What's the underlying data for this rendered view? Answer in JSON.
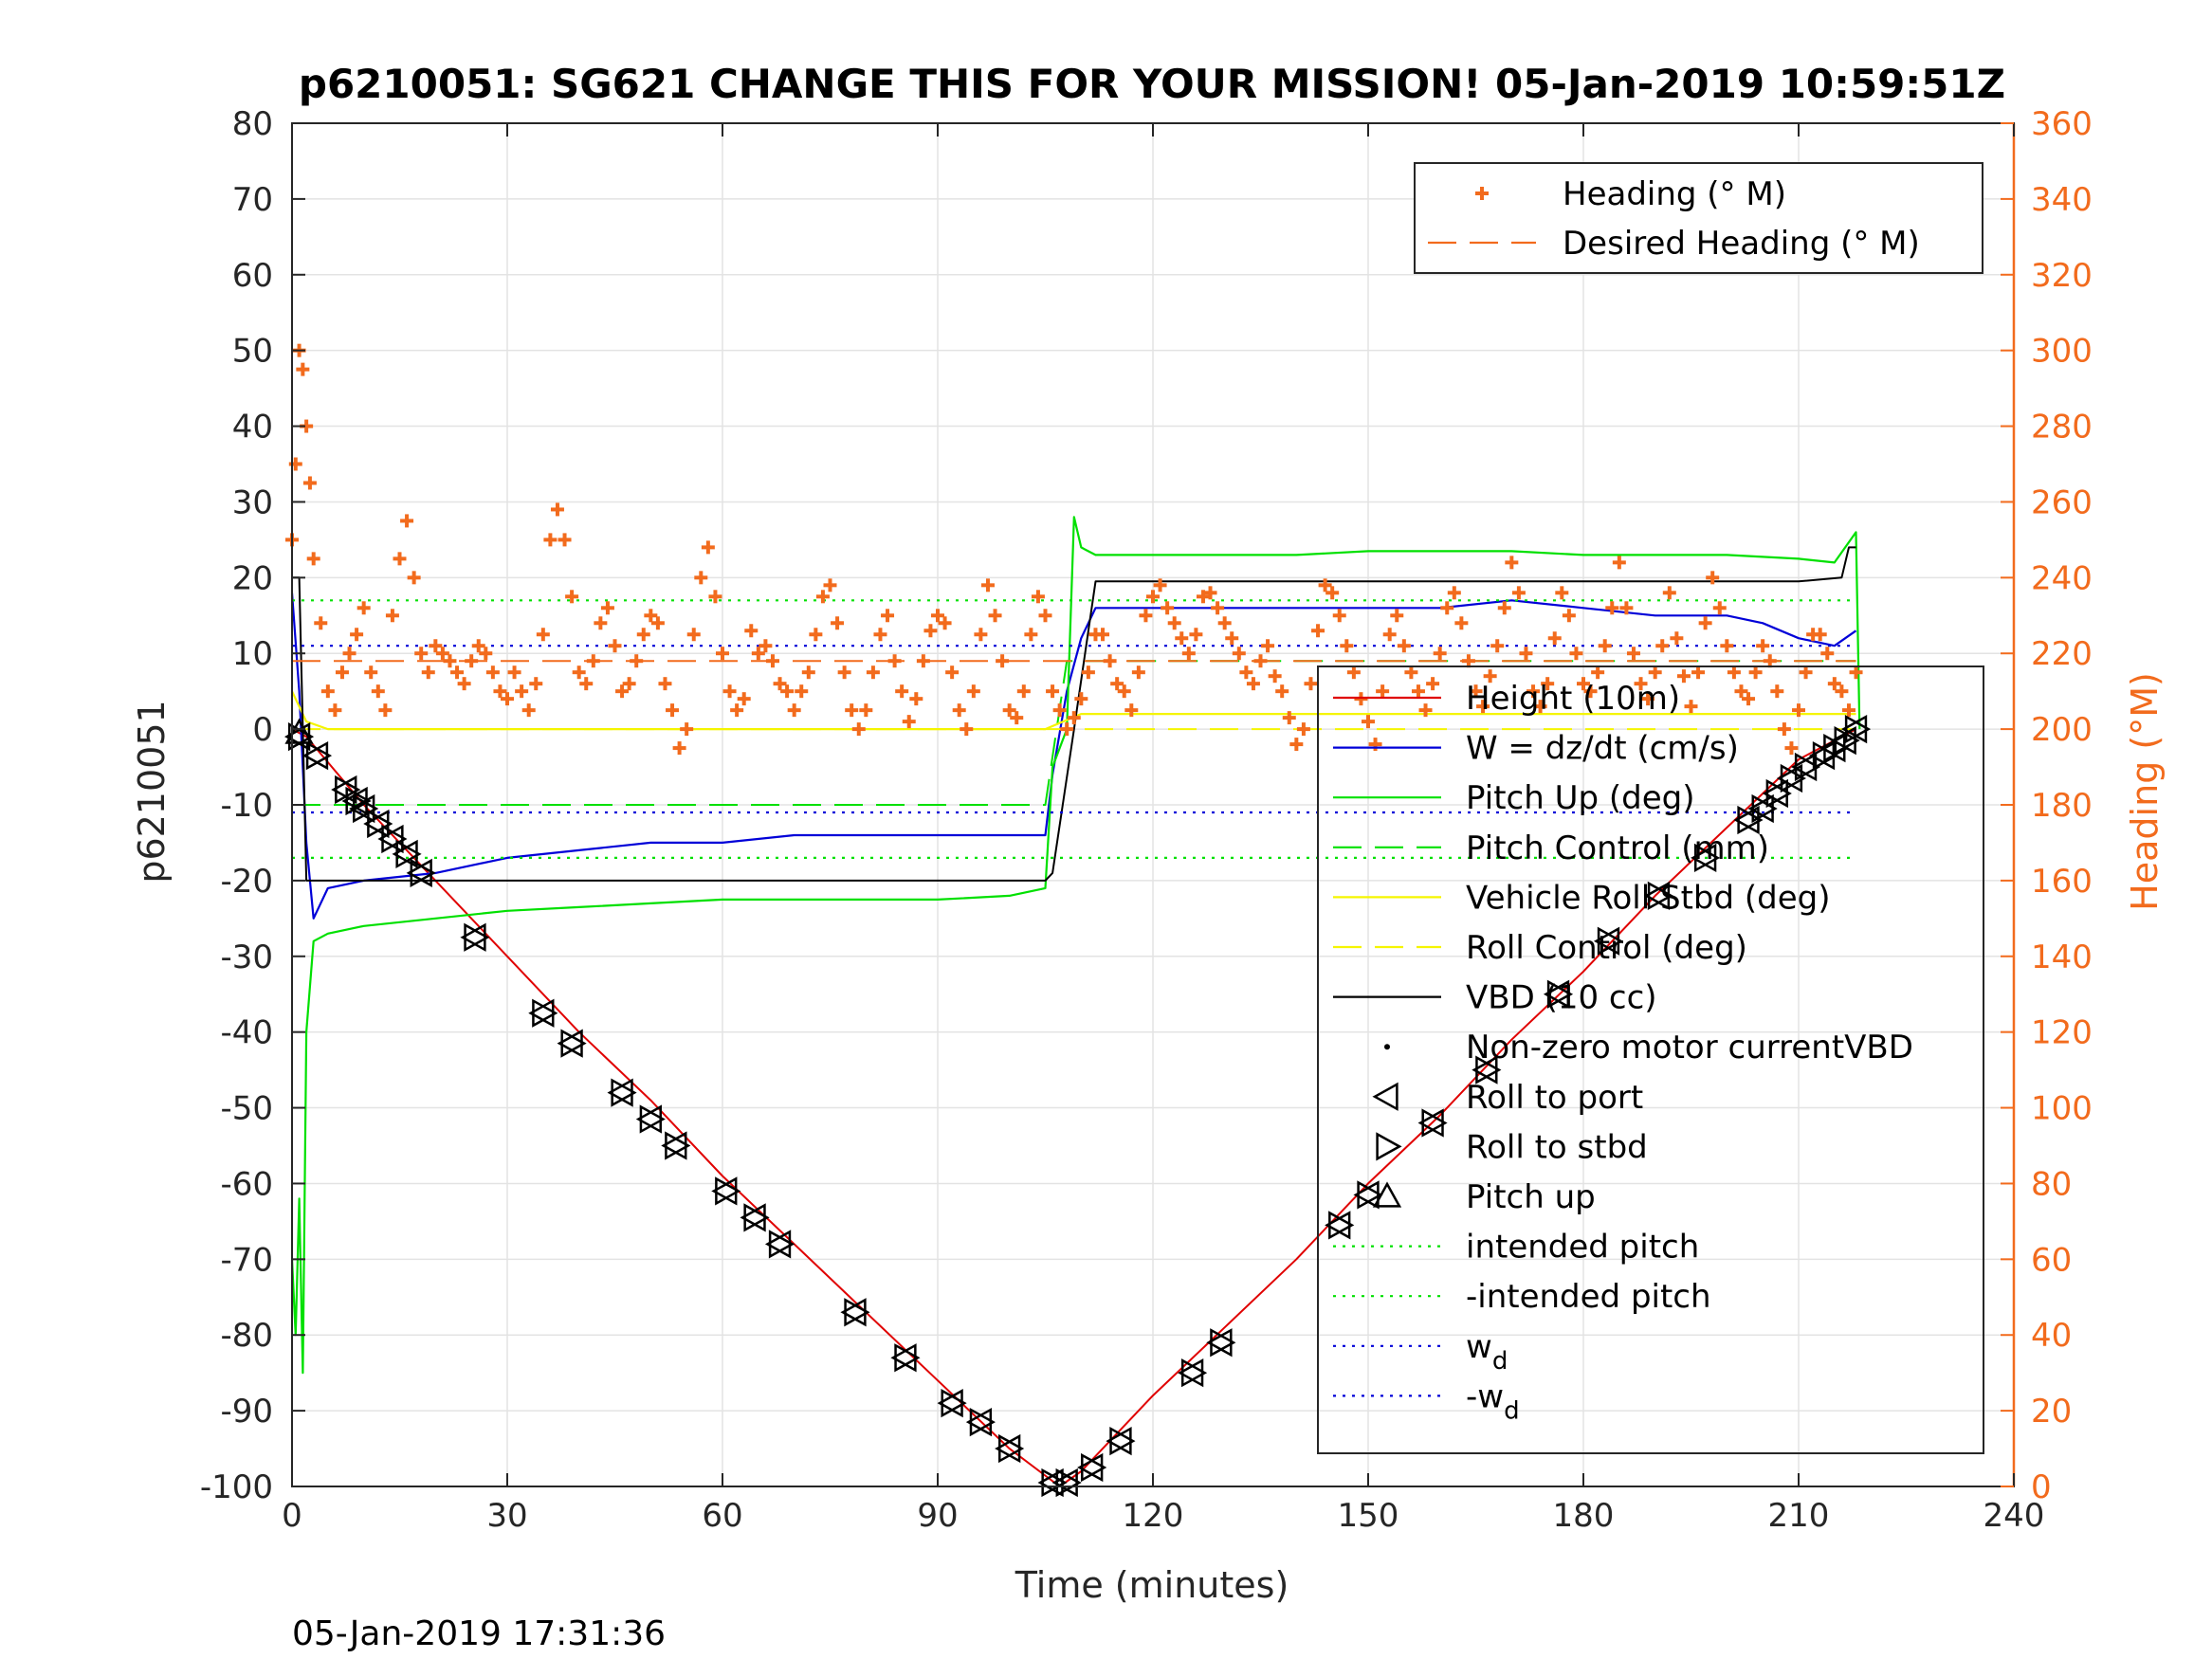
{
  "chart_data": {
    "type": "line",
    "title": "p6210051: SG621 CHANGE THIS FOR YOUR MISSION! 05-Jan-2019 10:59:51Z",
    "xlabel": "Time (minutes)",
    "ylabel": "p6210051",
    "y2label": "Heading (°M)",
    "footer": "05-Jan-2019 17:31:36",
    "xlim": [
      0,
      240
    ],
    "ylim": [
      -100,
      80
    ],
    "y2lim": [
      0,
      360
    ],
    "xticks": [
      0,
      30,
      60,
      90,
      120,
      150,
      180,
      210,
      240
    ],
    "yticks": [
      -100,
      -90,
      -80,
      -70,
      -60,
      -50,
      -40,
      -30,
      -20,
      -10,
      0,
      10,
      20,
      30,
      40,
      50,
      60,
      70,
      80
    ],
    "y2ticks": [
      0,
      20,
      40,
      60,
      80,
      100,
      120,
      140,
      160,
      180,
      200,
      220,
      240,
      260,
      280,
      300,
      320,
      340,
      360
    ],
    "grid": true,
    "colors": {
      "height": "#e00000",
      "w": "#0000d8",
      "pitch": "#00e000",
      "roll": "#f5f500",
      "vbd": "#000000",
      "heading": "#f26b1d",
      "axis": "#262626"
    },
    "legend_top": {
      "placement": "top-right",
      "entries": [
        {
          "label": "Heading (° M)",
          "style": "plus",
          "color": "#f26b1d"
        },
        {
          "label": "Desired Heading (° M)",
          "style": "dashed",
          "color": "#f26b1d"
        }
      ]
    },
    "legend_main": {
      "placement": "bottom-right",
      "entries": [
        {
          "label": "Height (10m)",
          "style": "solid",
          "color": "#e00000"
        },
        {
          "label": "W = dz/dt (cm/s)",
          "style": "solid",
          "color": "#0000d8"
        },
        {
          "label": "Pitch Up (deg)",
          "style": "solid",
          "color": "#00e000"
        },
        {
          "label": "Pitch Control (mm)",
          "style": "dashed",
          "color": "#00e000"
        },
        {
          "label": "Vehicle Roll Stbd (deg)",
          "style": "solid",
          "color": "#f5f500"
        },
        {
          "label": "Roll Control (deg)",
          "style": "dashed",
          "color": "#f5f500"
        },
        {
          "label": "VBD (10 cc)",
          "style": "solid",
          "color": "#000000"
        },
        {
          "label": "Non-zero motor currentVBD",
          "style": "dot",
          "color": "#000000"
        },
        {
          "label": "Roll to port",
          "style": "tri-left",
          "color": "#000000"
        },
        {
          "label": "Roll to stbd",
          "style": "tri-right",
          "color": "#000000"
        },
        {
          "label": "Pitch up",
          "style": "tri-up",
          "color": "#000000"
        },
        {
          "label": "intended pitch",
          "style": "dotted",
          "color": "#00e000"
        },
        {
          "label": "-intended pitch",
          "style": "dotted",
          "color": "#00e000"
        },
        {
          "label": "w",
          "sub": "d",
          "style": "dotted",
          "color": "#0000d8"
        },
        {
          "label": "-w",
          "sub": "d",
          "style": "dotted",
          "color": "#0000d8"
        }
      ]
    },
    "series": [
      {
        "name": "Height (10m)",
        "x": [
          0,
          2,
          10,
          20,
          30,
          40,
          50,
          60,
          70,
          80,
          90,
          100,
          107,
          110,
          120,
          130,
          140,
          150,
          160,
          170,
          180,
          190,
          200,
          210,
          218
        ],
        "values": [
          0,
          -1,
          -10,
          -20,
          -30,
          -40,
          -49,
          -59,
          -68,
          -77,
          -86,
          -95,
          -100,
          -98,
          -88,
          -79,
          -70,
          -60,
          -51,
          -41,
          -32,
          -22,
          -13,
          -4,
          0
        ]
      },
      {
        "name": "W = dz/dt (cm/s)",
        "x": [
          0,
          1,
          2,
          3,
          5,
          10,
          20,
          30,
          40,
          50,
          60,
          70,
          80,
          90,
          100,
          105,
          106,
          108,
          110,
          112,
          120,
          130,
          140,
          150,
          160,
          170,
          180,
          190,
          200,
          205,
          210,
          215,
          218
        ],
        "values": [
          18,
          5,
          -15,
          -25,
          -21,
          -20,
          -19,
          -17,
          -16,
          -15,
          -15,
          -14,
          -14,
          -14,
          -14,
          -14,
          -6,
          5,
          12,
          16,
          16,
          16,
          16,
          16,
          16,
          17,
          16,
          15,
          15,
          14,
          12,
          11,
          13
        ]
      },
      {
        "name": "Pitch Up (deg)",
        "x": [
          0,
          0.5,
          1,
          1.5,
          2,
          3,
          5,
          10,
          20,
          30,
          40,
          50,
          60,
          70,
          80,
          90,
          100,
          105,
          106,
          108,
          109,
          110,
          112,
          120,
          130,
          140,
          150,
          160,
          170,
          180,
          190,
          200,
          210,
          215,
          218,
          218.5
        ],
        "values": [
          -70,
          -80,
          -62,
          -85,
          -40,
          -28,
          -27,
          -26,
          -25,
          -24,
          -23.5,
          -23,
          -22.5,
          -22.5,
          -22.5,
          -22.5,
          -22,
          -21,
          -5,
          0,
          28,
          24,
          23,
          23,
          23,
          23,
          23.5,
          23.5,
          23.5,
          23,
          23,
          23,
          22.5,
          22,
          26,
          0
        ]
      },
      {
        "name": "Pitch Control (mm)",
        "x": [
          0,
          5,
          105,
          108,
          160,
          218
        ],
        "values": [
          -10,
          -10,
          -10,
          9,
          9,
          9
        ]
      },
      {
        "name": "Vehicle Roll Stbd (deg)",
        "x": [
          0,
          2,
          5,
          40,
          80,
          105,
          110,
          150,
          200,
          218
        ],
        "values": [
          5,
          1,
          0,
          0,
          0,
          0,
          2,
          2,
          2,
          2
        ]
      },
      {
        "name": "Roll Control (deg)",
        "x": [
          0,
          218
        ],
        "values": [
          0,
          0
        ]
      },
      {
        "name": "VBD (10 cc)",
        "x": [
          0,
          1,
          1.5,
          2,
          20,
          50,
          105,
          106,
          109,
          112,
          120,
          150,
          200,
          210,
          216,
          217,
          218
        ],
        "values": [
          20,
          20,
          0,
          -20,
          -20,
          -20,
          -20,
          -19,
          0,
          19.5,
          19.5,
          19.5,
          19.5,
          19.5,
          20,
          24,
          24
        ]
      },
      {
        "name": "intended pitch",
        "x": [
          0,
          218
        ],
        "values": [
          17,
          17
        ]
      },
      {
        "name": "-intended pitch",
        "x": [
          0,
          218
        ],
        "values": [
          -17,
          -17
        ]
      },
      {
        "name": "w_d",
        "x": [
          0,
          218
        ],
        "values": [
          11,
          11
        ]
      },
      {
        "name": "-w_d",
        "x": [
          0,
          218
        ],
        "values": [
          -11,
          -11
        ]
      }
    ],
    "markers": {
      "name": "Roll to port / Roll to stbd (on dive track)",
      "x": [
        1,
        3.5,
        7.5,
        9,
        10,
        12,
        14,
        16,
        18,
        25.5,
        35,
        39,
        46,
        50,
        53.5,
        60.5,
        64.5,
        68,
        78.5,
        85.5,
        92,
        96,
        100,
        106,
        108,
        111.5,
        115.5,
        125.5,
        129.5,
        146,
        150,
        159,
        166.5,
        176.5,
        183.5,
        190.5,
        197,
        203,
        205,
        207,
        209,
        211,
        213.5,
        215,
        216.5,
        218
      ],
      "values": [
        -1,
        -3.5,
        -8,
        -9.5,
        -10.5,
        -12.5,
        -14.5,
        -16.5,
        -19,
        -27.5,
        -37.5,
        -41.5,
        -48,
        -51.5,
        -55,
        -61,
        -64.5,
        -68,
        -77,
        -83,
        -89,
        -91.5,
        -95,
        -99.5,
        -99.5,
        -97.5,
        -94,
        -85,
        -81,
        -65.5,
        -61.5,
        -52,
        -45,
        -35,
        -28,
        -22,
        -17,
        -12,
        -10.5,
        -8.5,
        -6.5,
        -5,
        -3.5,
        -2.5,
        -1.5,
        0
      ]
    },
    "pitch_up_marker": {
      "x": 1,
      "y": -0.5
    },
    "heading": {
      "name": "Heading (° M)",
      "axis": "right",
      "x": [
        0,
        0.5,
        1,
        1.5,
        2,
        2.5,
        3,
        4,
        5,
        6,
        7,
        8,
        9,
        10,
        11,
        12,
        13,
        14,
        15,
        16,
        17,
        18,
        19,
        20,
        21,
        22,
        23,
        24,
        25,
        26,
        27,
        28,
        29,
        30,
        31,
        32,
        33,
        34,
        35,
        36,
        37,
        38,
        39,
        40,
        41,
        42,
        43,
        44,
        45,
        46,
        47,
        48,
        49,
        50,
        51,
        52,
        53,
        54,
        55,
        56,
        57,
        58,
        59,
        60,
        61,
        62,
        63,
        64,
        65,
        66,
        67,
        68,
        69,
        70,
        71,
        72,
        73,
        74,
        75,
        76,
        77,
        78,
        79,
        80,
        81,
        82,
        83,
        84,
        85,
        86,
        87,
        88,
        89,
        90,
        91,
        92,
        93,
        94,
        95,
        96,
        97,
        98,
        99,
        100,
        101,
        102,
        103,
        104,
        105,
        106,
        107,
        108,
        109,
        110,
        111,
        112,
        113,
        114,
        115,
        116,
        117,
        118,
        119,
        120,
        121,
        122,
        123,
        124,
        125,
        126,
        127,
        128,
        129,
        130,
        131,
        132,
        133,
        134,
        135,
        136,
        137,
        138,
        139,
        140,
        141,
        142,
        143,
        144,
        145,
        146,
        147,
        148,
        149,
        150,
        151,
        152,
        153,
        154,
        155,
        156,
        157,
        158,
        159,
        160,
        161,
        162,
        163,
        164,
        165,
        166,
        167,
        168,
        169,
        170,
        171,
        172,
        173,
        174,
        175,
        176,
        177,
        178,
        179,
        180,
        181,
        182,
        183,
        184,
        185,
        186,
        187,
        188,
        189,
        190,
        191,
        192,
        193,
        194,
        195,
        196,
        197,
        198,
        199,
        200,
        201,
        202,
        203,
        204,
        205,
        206,
        207,
        208,
        209,
        210,
        211,
        212,
        213,
        214,
        215,
        216,
        217,
        218
      ],
      "values": [
        250,
        270,
        300,
        295,
        280,
        265,
        245,
        228,
        210,
        205,
        215,
        220,
        225,
        232,
        215,
        210,
        205,
        230,
        245,
        255,
        240,
        220,
        215,
        222,
        220,
        218,
        215,
        212,
        218,
        222,
        220,
        215,
        210,
        208,
        215,
        210,
        205,
        212,
        225,
        250,
        258,
        250,
        235,
        215,
        212,
        218,
        228,
        232,
        222,
        210,
        212,
        218,
        225,
        230,
        228,
        212,
        205,
        195,
        200,
        225,
        240,
        248,
        235,
        220,
        210,
        205,
        208,
        226,
        220,
        222,
        218,
        212,
        210,
        205,
        210,
        215,
        225,
        235,
        238,
        228,
        215,
        205,
        200,
        205,
        215,
        225,
        230,
        218,
        210,
        202,
        208,
        218,
        226,
        230,
        228,
        215,
        205,
        200,
        210,
        225,
        238,
        230,
        218,
        205,
        203,
        210,
        225,
        235,
        230,
        210,
        205,
        200,
        203,
        208,
        215,
        225,
        225,
        218,
        212,
        210,
        205,
        215,
        230,
        235,
        238,
        232,
        228,
        224,
        220,
        225,
        235,
        236,
        232,
        228,
        224,
        220,
        215,
        212,
        218,
        222,
        214,
        210,
        203,
        196,
        200,
        212,
        226,
        238,
        236,
        230,
        222,
        215,
        208,
        202,
        196,
        210,
        225,
        230,
        222,
        215,
        210,
        205,
        212,
        220,
        232,
        236,
        228,
        218,
        210,
        206,
        214,
        222,
        232,
        244,
        236,
        220,
        210,
        206,
        212,
        224,
        236,
        230,
        220,
        212,
        210,
        215,
        222,
        232,
        244,
        232,
        220,
        212,
        208,
        215,
        222,
        236,
        224,
        214,
        206,
        215,
        228,
        240,
        232,
        222,
        215,
        210,
        208,
        215,
        222,
        218,
        210,
        200,
        195,
        205,
        215,
        225,
        225,
        220,
        212,
        210,
        205,
        215
      ]
    },
    "desired_heading": {
      "name": "Desired Heading (° M)",
      "axis": "right",
      "x": [
        0,
        218
      ],
      "values": [
        218,
        218
      ]
    }
  }
}
